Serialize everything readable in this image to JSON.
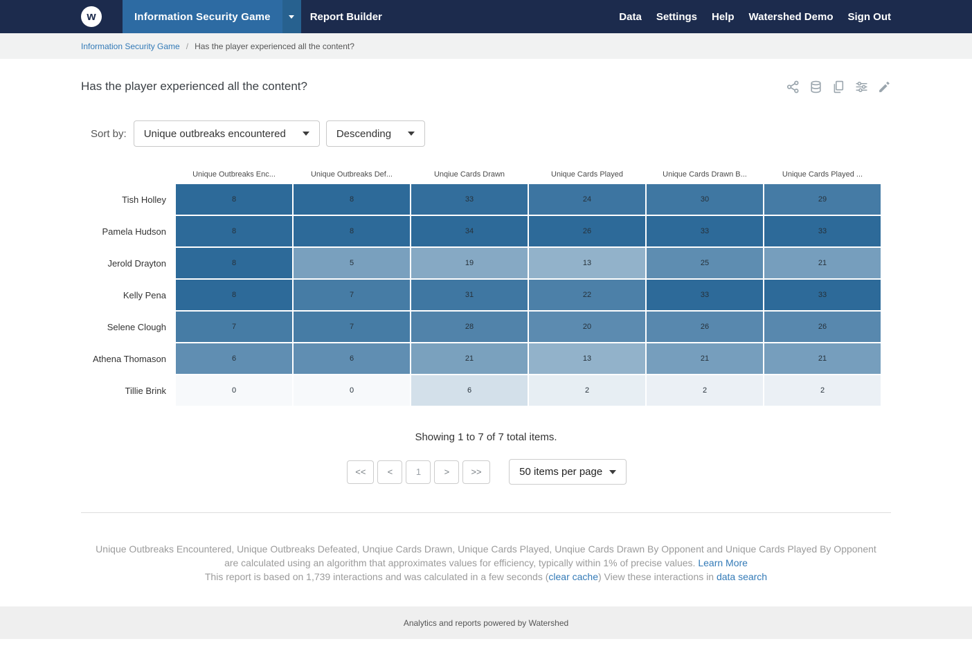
{
  "navbar": {
    "logo_letter": "w",
    "app_menu_label": "Information Security Game",
    "report_builder_label": "Report Builder",
    "links": [
      "Data",
      "Settings",
      "Help",
      "Watershed Demo",
      "Sign Out"
    ],
    "colors": {
      "bar": "#1c2b4d",
      "active_item": "#2d6ba3",
      "active_item_caret": "#27618f"
    }
  },
  "breadcrumb": {
    "parent": "Information Security Game",
    "separator": "/",
    "current": "Has the player experienced all the content?"
  },
  "toolbar_icons": [
    "share-icon",
    "database-icon",
    "copy-report-icon",
    "report-options-icon",
    "edit-icon"
  ],
  "report": {
    "title": "Has the player experienced all the content?",
    "sort_by_label": "Sort by:",
    "sort_field_value": "Unique outbreaks encountered",
    "sort_direction_value": "Descending"
  },
  "chart_data": {
    "type": "heatmap",
    "columns": [
      "Unique Outbreaks Enc...",
      "Unique Outbreaks Def...",
      "Unqiue Cards Drawn",
      "Unique Cards Played",
      "Unique Cards Drawn B...",
      "Unique Cards Played ..."
    ],
    "rows": [
      {
        "name": "Tish Holley",
        "values": [
          8,
          8,
          33,
          24,
          30,
          29
        ]
      },
      {
        "name": "Pamela Hudson",
        "values": [
          8,
          8,
          34,
          26,
          33,
          33
        ]
      },
      {
        "name": "Jerold Drayton",
        "values": [
          8,
          5,
          19,
          13,
          25,
          21
        ]
      },
      {
        "name": "Kelly Pena",
        "values": [
          8,
          7,
          31,
          22,
          33,
          33
        ]
      },
      {
        "name": "Selene Clough",
        "values": [
          7,
          7,
          28,
          20,
          26,
          26
        ]
      },
      {
        "name": "Athena Thomason",
        "values": [
          6,
          6,
          21,
          13,
          21,
          21
        ]
      },
      {
        "name": "Tillie Brink",
        "values": [
          0,
          0,
          6,
          2,
          2,
          2
        ]
      }
    ],
    "color_scale": {
      "min_color": "#f7f9fb",
      "max_color": "#2d6a99",
      "normalize": "per-column"
    },
    "legend_position": "none",
    "grid": false
  },
  "pagination": {
    "summary": "Showing 1 to 7 of 7 total items.",
    "first_label": "<<",
    "prev_label": "<",
    "page_label": "1",
    "next_label": ">",
    "last_label": ">>",
    "items_per_page_value": "50 items per page"
  },
  "footer": {
    "disclaimer_text": "Unique Outbreaks Encountered, Unique Outbreaks Defeated, Unqiue Cards Drawn, Unique Cards Played, Unqiue Cards Drawn By Opponent and Unique Cards Played By Opponent are calculated using an algorithm that approximates values for efficiency, typically within 1% of precise values. ",
    "learn_more_label": "Learn More",
    "interactions_prefix": "This report is based on 1,739 interactions and was calculated in a few seconds (",
    "clear_cache_label": "clear cache",
    "interactions_middle": ") View these interactions in ",
    "data_search_label": "data search",
    "powered_by": "Analytics and reports powered by Watershed"
  }
}
